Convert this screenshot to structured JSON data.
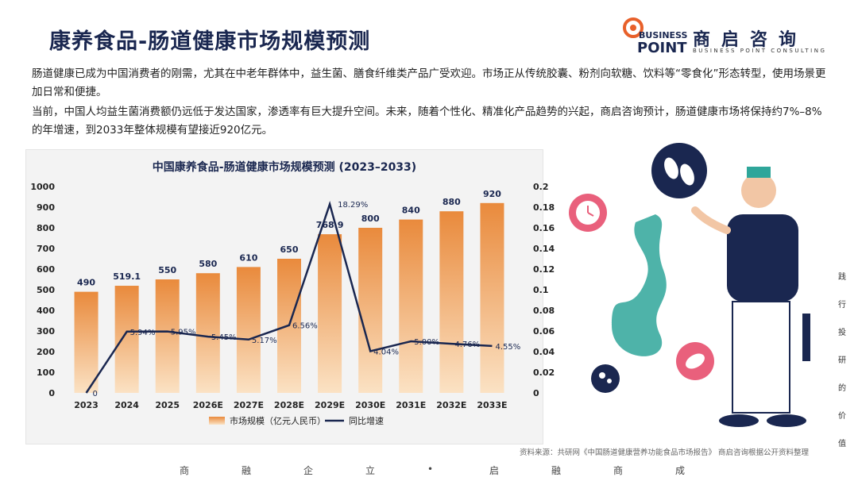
{
  "header": {
    "title": "康养食品-肠道健康市场规模预测"
  },
  "logo": {
    "business": "BUSINESS",
    "point": "POINT",
    "cn_name": "商启咨询",
    "en_name": "BUSINESS POINT CONSULTING"
  },
  "intro": {
    "paragraph1": "肠道健康已成为中国消费者的刚需，尤其在中老年群体中，益生菌、膳食纤维类产品广受欢迎。市场正从传统胶囊、粉剂向软糖、饮料等“零食化”形态转型，使用场景更加日常和便捷。",
    "paragraph2": "当前，中国人均益生菌消费额仍远低于发达国家，渗透率有巨大提升空间。未来，随着个性化、精准化产品趋势的兴起，商启咨询预计，肠道健康市场将保持约7%–8%的年增速，到2033年整体规模有望接近920亿元。"
  },
  "colors": {
    "bar_top": "#e98a3c",
    "bar_bottom": "#fbe2c4",
    "line": "#1a2750",
    "accent": "#e8602a"
  },
  "chart_data": {
    "type": "bar+line",
    "title": "中国康养食品-肠道健康市场规模预测 (2023–2033)",
    "categories": [
      "2023",
      "2024",
      "2025",
      "2026E",
      "2027E",
      "2028E",
      "2029E",
      "2030E",
      "2031E",
      "2032E",
      "2033E"
    ],
    "series": [
      {
        "name": "市场规模（亿元人民币）",
        "type": "bar",
        "axis": "left",
        "values": [
          490,
          519.1,
          550,
          580,
          610,
          650,
          768.9,
          800,
          840,
          880,
          920
        ],
        "labels": [
          "490",
          "519.1",
          "550",
          "580",
          "610",
          "650",
          "768.9",
          "800",
          "840",
          "880",
          "920"
        ]
      },
      {
        "name": "同比增速",
        "type": "line",
        "axis": "right",
        "values": [
          0,
          0.0594,
          0.0595,
          0.0545,
          0.0517,
          0.0656,
          0.1829,
          0.0404,
          0.05,
          0.0476,
          0.0455
        ],
        "labels": [
          "0",
          "5.94%",
          "5.95%",
          "5.45%",
          "5.17%",
          "6.56%",
          "18.29%",
          "4.04%",
          "5.00%",
          "4.76%",
          "4.55%"
        ]
      }
    ],
    "y_left": {
      "min": 0,
      "max": 1000,
      "ticks": [
        "0",
        "100",
        "200",
        "300",
        "400",
        "500",
        "600",
        "700",
        "800",
        "900",
        "1000"
      ]
    },
    "y_right": {
      "min": 0,
      "max": 0.2,
      "ticks": [
        "0",
        "0.02",
        "0.04",
        "0.06",
        "0.08",
        "0.1",
        "0.12",
        "0.14",
        "0.16",
        "0.18",
        "0.2"
      ]
    },
    "legend": [
      "市场规模（亿元人民币）",
      "同比增速"
    ],
    "legend_position": "bottom"
  },
  "source": "资料来源：共研网《中国肠道健康营养功能食品市场报告》  商启咨询根据公开资料整理",
  "footer": {
    "slogan_chars": [
      "商",
      "融",
      "企",
      "立",
      "•",
      "启",
      "融",
      "商",
      "成"
    ]
  },
  "side_slogan": [
    "践",
    "行",
    "投",
    "研",
    "的",
    "价",
    "值"
  ]
}
